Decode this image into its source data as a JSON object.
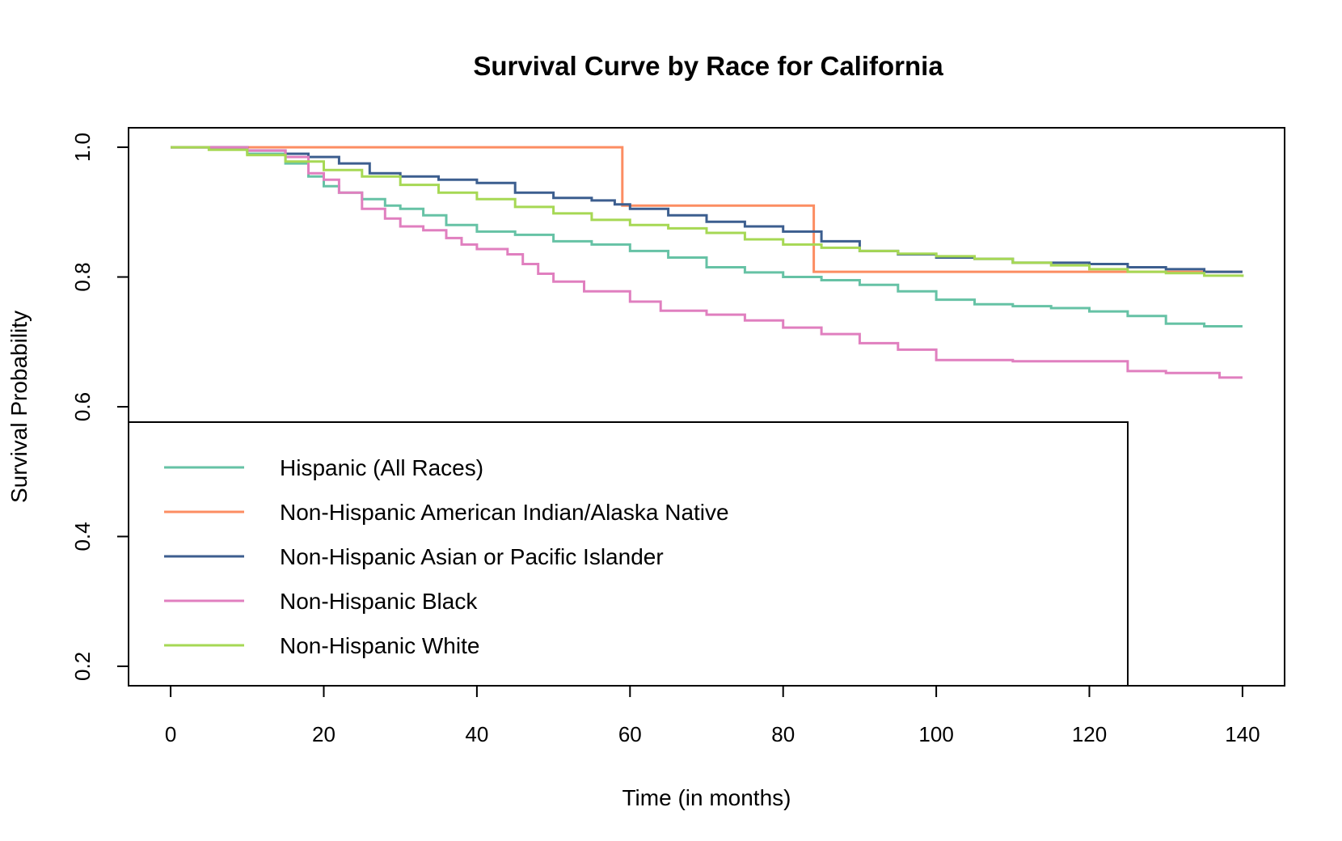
{
  "chart_data": {
    "type": "line",
    "title": "Survival Curve by Race for California",
    "xlabel": "Time (in months)",
    "ylabel": "Survival Probability",
    "xlim": [
      -5.5,
      145.5
    ],
    "ylim": [
      0.17,
      1.03
    ],
    "x_ticks": [
      0,
      20,
      40,
      60,
      80,
      100,
      120,
      140
    ],
    "y_ticks": [
      0.2,
      0.4,
      0.6,
      0.8,
      1.0
    ],
    "y_tick_labels": [
      "0.2",
      "0.4",
      "0.6",
      "0.8",
      "1.0"
    ],
    "grid": false,
    "legend_position": "bottom-left",
    "series": [
      {
        "name": "Hispanic (All Races)",
        "color": "#66c2a5",
        "x": [
          0,
          5,
          10,
          15,
          18,
          20,
          22,
          25,
          28,
          30,
          33,
          36,
          40,
          45,
          50,
          55,
          60,
          65,
          70,
          75,
          80,
          85,
          90,
          95,
          100,
          105,
          110,
          115,
          120,
          125,
          130,
          135,
          140
        ],
        "y": [
          1.0,
          0.997,
          0.99,
          0.975,
          0.955,
          0.94,
          0.93,
          0.92,
          0.91,
          0.905,
          0.895,
          0.88,
          0.87,
          0.865,
          0.855,
          0.85,
          0.84,
          0.83,
          0.815,
          0.807,
          0.8,
          0.795,
          0.788,
          0.778,
          0.765,
          0.758,
          0.755,
          0.752,
          0.747,
          0.74,
          0.728,
          0.724,
          0.724
        ]
      },
      {
        "name": "Non-Hispanic American Indian/Alaska Native",
        "color": "#fc8d62",
        "x": [
          0,
          59,
          84,
          140
        ],
        "y": [
          1.0,
          0.91,
          0.808,
          0.808
        ]
      },
      {
        "name": "Non-Hispanic Asian or Pacific Islander",
        "color": "#3c5e8f",
        "x": [
          0,
          10,
          15,
          18,
          22,
          26,
          30,
          35,
          40,
          45,
          50,
          55,
          58,
          60,
          65,
          70,
          75,
          80,
          85,
          90,
          95,
          100,
          105,
          110,
          120,
          125,
          130,
          135,
          140
        ],
        "y": [
          1.0,
          0.995,
          0.99,
          0.985,
          0.975,
          0.96,
          0.955,
          0.95,
          0.945,
          0.93,
          0.922,
          0.918,
          0.912,
          0.905,
          0.895,
          0.885,
          0.878,
          0.87,
          0.855,
          0.84,
          0.835,
          0.83,
          0.828,
          0.822,
          0.82,
          0.815,
          0.812,
          0.808,
          0.808
        ]
      },
      {
        "name": "Non-Hispanic Black",
        "color": "#e07fbf",
        "x": [
          0,
          10,
          15,
          18,
          20,
          22,
          25,
          28,
          30,
          33,
          36,
          38,
          40,
          44,
          46,
          48,
          50,
          54,
          60,
          64,
          70,
          75,
          80,
          85,
          90,
          95,
          100,
          110,
          120,
          125,
          130,
          137,
          140
        ],
        "y": [
          1.0,
          0.995,
          0.985,
          0.96,
          0.95,
          0.93,
          0.905,
          0.89,
          0.878,
          0.872,
          0.86,
          0.85,
          0.843,
          0.835,
          0.82,
          0.805,
          0.793,
          0.778,
          0.762,
          0.748,
          0.742,
          0.733,
          0.722,
          0.712,
          0.698,
          0.688,
          0.672,
          0.67,
          0.67,
          0.655,
          0.652,
          0.645,
          0.645
        ]
      },
      {
        "name": "Non-Hispanic White",
        "color": "#a6d854",
        "x": [
          0,
          5,
          10,
          15,
          20,
          25,
          30,
          35,
          40,
          45,
          50,
          55,
          60,
          65,
          70,
          75,
          80,
          85,
          90,
          95,
          100,
          105,
          110,
          115,
          120,
          125,
          130,
          135,
          140
        ],
        "y": [
          1.0,
          0.996,
          0.988,
          0.978,
          0.965,
          0.955,
          0.942,
          0.93,
          0.92,
          0.908,
          0.898,
          0.888,
          0.88,
          0.875,
          0.868,
          0.858,
          0.85,
          0.845,
          0.84,
          0.836,
          0.832,
          0.828,
          0.822,
          0.818,
          0.812,
          0.808,
          0.806,
          0.802,
          0.8
        ]
      }
    ]
  }
}
